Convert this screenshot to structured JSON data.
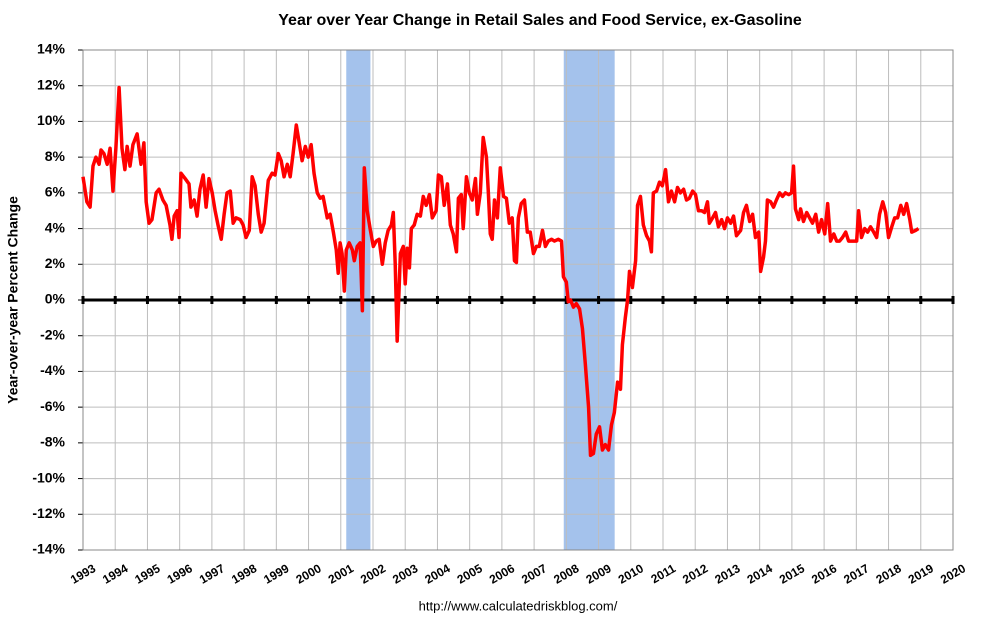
{
  "chart_data": {
    "type": "line",
    "title": "Year over Year Change in Retail Sales and Food Service, ex-Gasoline",
    "ylabel": "Year-over-year Percent Change",
    "footer": "http://www.calculatedriskblog.com/",
    "color": "#ff0000",
    "recession_color": "#a4c2ec",
    "grid": true,
    "xlim": [
      1993,
      2020
    ],
    "xticks": [
      1993,
      1994,
      1995,
      1996,
      1997,
      1998,
      1999,
      2000,
      2001,
      2002,
      2003,
      2004,
      2005,
      2006,
      2007,
      2008,
      2009,
      2010,
      2011,
      2012,
      2013,
      2014,
      2015,
      2016,
      2017,
      2018,
      2019,
      2020
    ],
    "ylim": [
      -14,
      14
    ],
    "yticks": [
      {
        "value": -14,
        "label": "-14%"
      },
      {
        "value": -12,
        "label": "-12%"
      },
      {
        "value": -10,
        "label": "-10%"
      },
      {
        "value": -8,
        "label": "-8%"
      },
      {
        "value": -6,
        "label": "-6%"
      },
      {
        "value": -4,
        "label": "-4%"
      },
      {
        "value": -2,
        "label": "-2%"
      },
      {
        "value": 0,
        "label": "0%"
      },
      {
        "value": 2,
        "label": "2%"
      },
      {
        "value": 4,
        "label": "4%"
      },
      {
        "value": 6,
        "label": "6%"
      },
      {
        "value": 8,
        "label": "8%"
      },
      {
        "value": 10,
        "label": "10%"
      },
      {
        "value": 12,
        "label": "12%"
      },
      {
        "value": 14,
        "label": "14%"
      }
    ],
    "recessions": [
      [
        2001.17,
        2001.92
      ],
      [
        2007.92,
        2009.5
      ]
    ],
    "x": [
      1993.0,
      1993.12,
      1993.22,
      1993.31,
      1993.4,
      1993.5,
      1993.56,
      1993.65,
      1993.75,
      1993.84,
      1993.93,
      1994.02,
      1994.12,
      1994.21,
      1994.3,
      1994.37,
      1994.46,
      1994.55,
      1994.68,
      1994.8,
      1994.89,
      1994.96,
      1995.05,
      1995.14,
      1995.27,
      1995.36,
      1995.48,
      1995.58,
      1995.7,
      1995.76,
      1995.83,
      1995.92,
      1995.98,
      1996.04,
      1996.17,
      1996.29,
      1996.35,
      1996.45,
      1996.54,
      1996.63,
      1996.73,
      1996.82,
      1996.91,
      1997.01,
      1997.1,
      1997.19,
      1997.29,
      1997.38,
      1997.47,
      1997.57,
      1997.66,
      1997.75,
      1997.88,
      1997.97,
      1998.06,
      1998.16,
      1998.25,
      1998.34,
      1998.44,
      1998.53,
      1998.62,
      1998.75,
      1998.87,
      1998.96,
      1999.06,
      1999.15,
      1999.24,
      1999.34,
      1999.43,
      1999.52,
      1999.62,
      1999.71,
      1999.8,
      1999.9,
      1999.99,
      2000.08,
      2000.17,
      2000.27,
      2000.36,
      2000.45,
      2000.58,
      2000.67,
      2000.77,
      2000.86,
      2000.92,
      2000.98,
      2001.04,
      2001.11,
      2001.17,
      2001.26,
      2001.36,
      2001.42,
      2001.51,
      2001.6,
      2001.67,
      2001.73,
      2001.82,
      2001.91,
      2002.01,
      2002.1,
      2002.19,
      2002.29,
      2002.38,
      2002.47,
      2002.57,
      2002.63,
      2002.69,
      2002.75,
      2002.85,
      2002.94,
      2003.0,
      2003.06,
      2003.13,
      2003.19,
      2003.28,
      2003.37,
      2003.47,
      2003.56,
      2003.65,
      2003.75,
      2003.84,
      2003.96,
      2004.03,
      2004.12,
      2004.21,
      2004.31,
      2004.4,
      2004.49,
      2004.59,
      2004.65,
      2004.74,
      2004.8,
      2004.9,
      2004.99,
      2005.08,
      2005.18,
      2005.24,
      2005.33,
      2005.42,
      2005.52,
      2005.58,
      2005.64,
      2005.7,
      2005.77,
      2005.86,
      2005.95,
      2006.05,
      2006.14,
      2006.23,
      2006.32,
      2006.39,
      2006.45,
      2006.51,
      2006.6,
      2006.7,
      2006.79,
      2006.88,
      2006.98,
      2007.07,
      2007.16,
      2007.26,
      2007.35,
      2007.44,
      2007.54,
      2007.63,
      2007.75,
      2007.85,
      2007.91,
      2008.0,
      2008.06,
      2008.13,
      2008.22,
      2008.31,
      2008.41,
      2008.5,
      2008.59,
      2008.69,
      2008.75,
      2008.84,
      2008.93,
      2009.03,
      2009.12,
      2009.21,
      2009.31,
      2009.4,
      2009.49,
      2009.59,
      2009.68,
      2009.74,
      2009.83,
      2009.9,
      2009.96,
      2010.05,
      2010.15,
      2010.21,
      2010.3,
      2010.39,
      2010.49,
      2010.58,
      2010.64,
      2010.7,
      2010.8,
      2010.89,
      2010.98,
      2011.08,
      2011.17,
      2011.26,
      2011.36,
      2011.45,
      2011.54,
      2011.64,
      2011.73,
      2011.82,
      2011.92,
      2012.01,
      2012.1,
      2012.2,
      2012.29,
      2012.38,
      2012.44,
      2012.54,
      2012.63,
      2012.72,
      2012.82,
      2012.91,
      2013.0,
      2013.1,
      2013.19,
      2013.28,
      2013.41,
      2013.5,
      2013.59,
      2013.69,
      2013.78,
      2013.87,
      2013.97,
      2014.03,
      2014.12,
      2014.18,
      2014.24,
      2014.34,
      2014.43,
      2014.52,
      2014.62,
      2014.71,
      2014.8,
      2014.9,
      2014.99,
      2015.05,
      2015.11,
      2015.21,
      2015.27,
      2015.36,
      2015.46,
      2015.55,
      2015.64,
      2015.74,
      2015.83,
      2015.92,
      2016.02,
      2016.11,
      2016.2,
      2016.3,
      2016.39,
      2016.48,
      2016.57,
      2016.67,
      2016.76,
      2016.88,
      2017.01,
      2017.07,
      2017.16,
      2017.26,
      2017.35,
      2017.44,
      2017.54,
      2017.63,
      2017.72,
      2017.82,
      2017.91,
      2018.0,
      2018.1,
      2018.19,
      2018.28,
      2018.38,
      2018.47,
      2018.56,
      2018.66,
      2018.72,
      2018.84,
      2018.93
    ],
    "values": [
      6.9,
      5.5,
      5.2,
      7.5,
      8.0,
      7.6,
      8.4,
      8.2,
      7.6,
      8.5,
      6.1,
      8.5,
      11.9,
      8.5,
      7.3,
      8.6,
      7.5,
      8.7,
      9.3,
      7.6,
      8.8,
      5.5,
      4.3,
      4.5,
      6.0,
      6.2,
      5.6,
      5.3,
      4.2,
      3.4,
      4.7,
      5.0,
      3.5,
      7.1,
      6.8,
      6.5,
      5.2,
      5.6,
      4.7,
      6.2,
      7.0,
      5.2,
      6.8,
      6.0,
      5.0,
      4.2,
      3.4,
      4.8,
      6.0,
      6.1,
      4.3,
      4.6,
      4.5,
      4.2,
      3.5,
      3.9,
      6.9,
      6.4,
      4.8,
      3.8,
      4.3,
      6.7,
      7.1,
      7.0,
      8.2,
      7.8,
      6.9,
      7.6,
      6.9,
      8.2,
      9.8,
      8.8,
      7.8,
      8.6,
      8.0,
      8.7,
      7.1,
      6.0,
      5.7,
      5.8,
      4.6,
      4.8,
      3.8,
      2.8,
      1.5,
      3.2,
      2.6,
      0.5,
      2.8,
      3.2,
      2.8,
      2.2,
      3.0,
      3.2,
      -0.6,
      7.4,
      5.0,
      4.0,
      3.0,
      3.3,
      3.4,
      2.0,
      3.2,
      3.9,
      4.2,
      4.9,
      2.0,
      -2.3,
      2.6,
      3.0,
      0.9,
      2.9,
      1.8,
      4.0,
      4.2,
      4.8,
      4.7,
      5.8,
      5.3,
      5.9,
      4.6,
      5.0,
      7.0,
      6.9,
      5.3,
      6.5,
      4.2,
      3.7,
      2.7,
      5.7,
      5.9,
      4.0,
      6.9,
      6.0,
      5.6,
      6.8,
      4.8,
      6.0,
      9.1,
      8.0,
      6.0,
      3.7,
      3.4,
      5.6,
      4.6,
      7.4,
      5.8,
      5.7,
      4.3,
      4.6,
      2.2,
      2.1,
      4.6,
      5.4,
      5.6,
      3.8,
      3.8,
      2.6,
      3.0,
      3.0,
      3.9,
      3.0,
      3.3,
      3.4,
      3.3,
      3.4,
      3.3,
      1.3,
      1.0,
      -0.1,
      0.0,
      -0.4,
      -0.2,
      -0.5,
      -1.6,
      -3.6,
      -6.0,
      -8.7,
      -8.6,
      -7.5,
      -7.1,
      -8.4,
      -8.1,
      -8.4,
      -7.0,
      -6.3,
      -4.6,
      -5.0,
      -2.5,
      -1.0,
      0.0,
      1.6,
      0.7,
      2.2,
      5.3,
      5.8,
      4.2,
      3.6,
      3.3,
      2.7,
      6.0,
      6.1,
      6.6,
      6.4,
      7.3,
      5.5,
      6.1,
      5.5,
      6.3,
      6.0,
      6.2,
      5.6,
      5.7,
      6.1,
      5.9,
      5.0,
      5.0,
      4.9,
      5.5,
      4.3,
      4.6,
      4.9,
      4.1,
      4.5,
      4.0,
      4.6,
      4.3,
      4.7,
      3.6,
      3.9,
      4.9,
      5.3,
      4.4,
      4.8,
      3.5,
      3.8,
      1.6,
      2.4,
      3.3,
      5.6,
      5.5,
      5.2,
      5.6,
      6.0,
      5.8,
      6.0,
      5.9,
      6.0,
      7.5,
      5.1,
      4.5,
      5.1,
      4.4,
      4.9,
      4.6,
      4.3,
      4.8,
      3.8,
      4.5,
      3.7,
      5.4,
      3.3,
      3.7,
      3.3,
      3.3,
      3.5,
      3.8,
      3.3,
      3.3,
      3.3,
      5.0,
      3.5,
      4.0,
      3.8,
      4.1,
      3.8,
      3.5,
      4.8,
      5.5,
      4.9,
      3.5,
      4.1,
      4.6,
      4.6,
      5.3,
      4.8,
      5.4,
      4.5,
      3.8,
      3.9,
      4.0
    ]
  }
}
